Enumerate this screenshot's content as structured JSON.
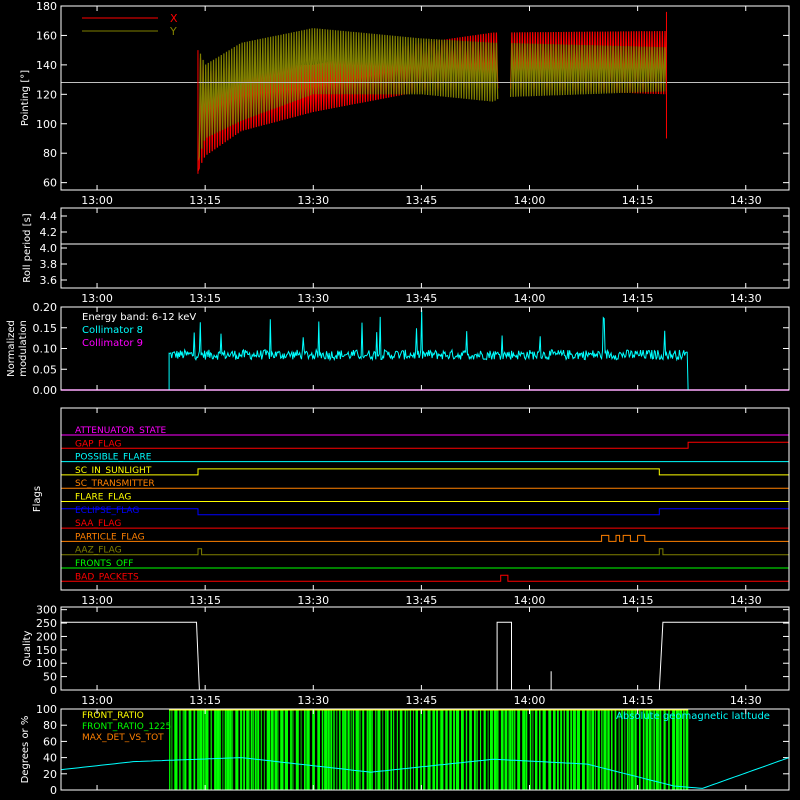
{
  "time_axis": {
    "range": [
      "12:55",
      "14:36"
    ],
    "ticks": [
      "13:00",
      "13:15",
      "13:30",
      "13:45",
      "14:00",
      "14:15",
      "14:30"
    ]
  },
  "chart_data": [
    {
      "type": "line",
      "ylabel": "Pointing [°]",
      "ylim": [
        55,
        180
      ],
      "yticks": [
        "60",
        "80",
        "100",
        "120",
        "140",
        "160",
        "180"
      ],
      "legend": "top-left",
      "series": [
        {
          "name": "X",
          "color": "#ff0000",
          "envelope_x": [
            "13:14",
            "13:15",
            "13:20",
            "13:30",
            "13:45",
            "13:55",
            "13:56",
            "14:19"
          ],
          "upper": [
            150,
            135,
            140,
            140,
            155,
            162,
            162,
            163
          ],
          "lower": [
            68,
            78,
            95,
            108,
            122,
            124,
            124,
            120
          ]
        },
        {
          "name": "Y",
          "color": "#808000",
          "envelope_x": [
            "13:14",
            "13:15",
            "13:20",
            "13:30",
            "13:45",
            "13:55",
            "13:56",
            "14:19"
          ],
          "upper": [
            152,
            140,
            155,
            165,
            158,
            155,
            155,
            152
          ],
          "lower": [
            75,
            90,
            102,
            120,
            120,
            115,
            118,
            122
          ]
        }
      ],
      "gaps": [
        [
          "13:55.6",
          "13:57.2"
        ]
      ],
      "reference_line": {
        "value": 128,
        "color": "#c0c0c0"
      }
    },
    {
      "type": "line",
      "ylabel": "Roll period [s]",
      "ylim": [
        3.5,
        4.5
      ],
      "yticks": [
        "3.6",
        "3.8",
        "4.0",
        "4.2",
        "4.4"
      ],
      "series": [
        {
          "name": "",
          "color": "#ffffff",
          "x": [
            "12:55",
            "14:36"
          ],
          "y": [
            4.05,
            4.05
          ]
        }
      ]
    },
    {
      "type": "line",
      "ylabel": "Normalized modulation",
      "ylim": [
        0,
        0.2
      ],
      "yticks": [
        "0.00",
        "0.05",
        "0.10",
        "0.15",
        "0.20"
      ],
      "annotation": "Energy band: 6-12 keV",
      "series": [
        {
          "name": "Collimator 8",
          "color": "#00ffff",
          "x_range": [
            "13:10",
            "14:22"
          ],
          "mean": 0.085,
          "spread": 0.012
        },
        {
          "name": "Collimator 9",
          "color": "#ff00ff",
          "x": [
            "12:55",
            "14:36"
          ],
          "y": [
            0.0,
            0.0
          ]
        }
      ]
    },
    {
      "type": "line",
      "ylabel": "Flags",
      "series": [
        {
          "name": "ATTENUATOR_STATE",
          "color": "#ff00ff",
          "steps": []
        },
        {
          "name": "GAP_FLAG",
          "color": "#ff0000",
          "steps": [
            [
              "14:22",
              "14:36"
            ]
          ]
        },
        {
          "name": "POSSIBLE_FLARE",
          "color": "#00ffff",
          "steps": []
        },
        {
          "name": "SC_IN_SUNLIGHT",
          "color": "#ffff00",
          "steps": [
            [
              "13:14",
              "14:18"
            ]
          ]
        },
        {
          "name": "SC_TRANSMITTER",
          "color": "#ff8000",
          "steps": []
        },
        {
          "name": "FLARE_FLAG",
          "color": "#ffff00",
          "steps": []
        },
        {
          "name": "ECLIPSE_FLAG",
          "color": "#0000ff",
          "steps": [
            [
              "12:55",
              "13:14"
            ],
            [
              "14:18",
              "14:36"
            ]
          ]
        },
        {
          "name": "SAA_FLAG",
          "color": "#ff0000",
          "steps": []
        },
        {
          "name": "PARTICLE_FLAG",
          "color": "#ff8000",
          "steps": [
            [
              "14:10",
              "14:11"
            ],
            [
              "14:12",
              "14:12.5"
            ],
            [
              "14:13",
              "14:14"
            ],
            [
              "14:15",
              "14:16"
            ]
          ]
        },
        {
          "name": "AAZ_FLAG",
          "color": "#808000",
          "steps": [
            [
              "13:14",
              "13:14.5"
            ],
            [
              "14:18",
              "14:18.5"
            ]
          ]
        },
        {
          "name": "FRONTS_OFF",
          "color": "#00ff00",
          "steps": []
        },
        {
          "name": "BAD_PACKETS",
          "color": "#ff0000",
          "steps": [
            [
              "13:56",
              "13:57"
            ]
          ]
        }
      ]
    },
    {
      "type": "line",
      "ylabel": "Quality",
      "ylim": [
        0,
        310
      ],
      "yticks": [
        "0",
        "50",
        "100",
        "150",
        "200",
        "250",
        "300"
      ],
      "series": [
        {
          "name": "",
          "color": "#ffffff",
          "x": [
            "12:55",
            "13:13.8",
            "13:14.2",
            "13:55.5",
            "13:55.5",
            "13:57.5",
            "13:57.5",
            "14:03",
            "14:03",
            "14:18",
            "14:18.5",
            "14:36"
          ],
          "y": [
            253,
            253,
            0,
            0,
            253,
            253,
            0,
            0,
            0,
            0,
            253,
            253
          ]
        }
      ]
    },
    {
      "type": "line",
      "ylabel": "Degrees or %",
      "ylim": [
        0,
        100
      ],
      "yticks": [
        "0",
        "20",
        "40",
        "60",
        "80",
        "100"
      ],
      "legend": "top-left",
      "series": [
        {
          "name": "FRONT_RATIO",
          "color": "#ffff00"
        },
        {
          "name": "FRONT_RATIO_1225",
          "color": "#00ff00"
        },
        {
          "name": "MAX_DET_VS_TOT",
          "color": "#ff8000"
        },
        {
          "name": "Absolute geomagnetic latitude",
          "color": "#00ffff",
          "x": [
            "12:55",
            "13:05",
            "13:20",
            "13:38",
            "13:55",
            "14:08",
            "14:20",
            "14:24",
            "14:36"
          ],
          "y": [
            25,
            35,
            40,
            22,
            38,
            32,
            5,
            2,
            40
          ]
        }
      ]
    }
  ]
}
